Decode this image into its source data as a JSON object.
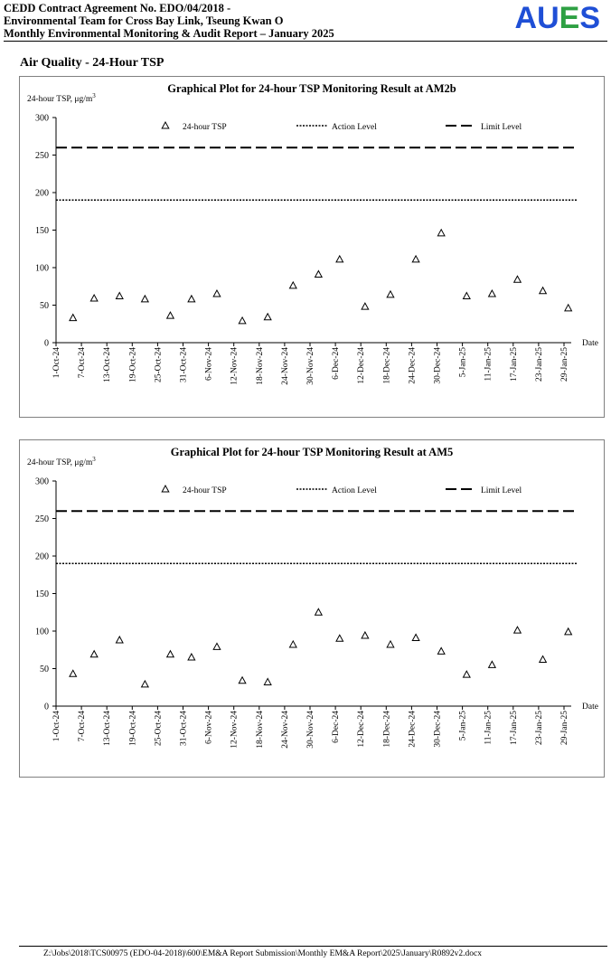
{
  "header": {
    "line1": "CEDD Contract Agreement No. EDO/04/2018 -",
    "line2": "Environmental Team for Cross Bay Link, Tseung Kwan O",
    "line3": "Monthly Environmental Monitoring & Audit Report – January 2025",
    "logo_text": "AUES",
    "logo_colors": [
      "#1f4fd6",
      "#1f4fd6",
      "#2ea043",
      "#1f4fd6"
    ]
  },
  "section_title": "Air Quality - 24-Hour TSP",
  "footer_path": "Z:\\Jobs\\2018\\TCS00975 (EDO-04-2018)\\600\\EM&A Report Submission\\Monthly EM&A Report\\2025\\January\\R0892v2.docx",
  "chart_data": [
    {
      "type": "scatter",
      "title": "Graphical Plot for 24-hour TSP Monitoring Result at AM2b",
      "ylabel": "24-hour TSP, μg/m",
      "ylabel_sup": "3",
      "xlabel": "Date",
      "ylim": [
        0,
        300
      ],
      "yticks": [
        0,
        50,
        100,
        150,
        200,
        250,
        300
      ],
      "xticks": [
        "1-Oct-24",
        "7-Oct-24",
        "13-Oct-24",
        "19-Oct-24",
        "25-Oct-24",
        "31-Oct-24",
        "6-Nov-24",
        "12-Nov-24",
        "18-Nov-24",
        "24-Nov-24",
        "30-Nov-24",
        "6-Dec-24",
        "12-Dec-24",
        "18-Dec-24",
        "24-Dec-24",
        "30-Dec-24",
        "5-Jan-25",
        "11-Jan-25",
        "17-Jan-25",
        "23-Jan-25",
        "29-Jan-25"
      ],
      "grid": false,
      "legend": [
        "24-hour TSP",
        "Action Level",
        "Limit Level"
      ],
      "legend_position": "top",
      "series": [
        {
          "name": "24-hour TSP",
          "marker": "triangle",
          "x": [
            "2024-10-05",
            "2024-10-10",
            "2024-10-16",
            "2024-10-22",
            "2024-10-28",
            "2024-11-02",
            "2024-11-08",
            "2024-11-14",
            "2024-11-20",
            "2024-11-26",
            "2024-12-02",
            "2024-12-07",
            "2024-12-13",
            "2024-12-19",
            "2024-12-25",
            "2024-12-31",
            "2025-01-06",
            "2025-01-12",
            "2025-01-18",
            "2025-01-24",
            "2025-01-30"
          ],
          "y": [
            33,
            59,
            62,
            58,
            36,
            58,
            65,
            29,
            34,
            76,
            91,
            111,
            48,
            64,
            111,
            146,
            62,
            65,
            84,
            69,
            46
          ]
        },
        {
          "name": "Action Level",
          "style": "dotted",
          "y_const": 190
        },
        {
          "name": "Limit Level",
          "style": "dashed",
          "y_const": 260
        }
      ]
    },
    {
      "type": "scatter",
      "title": "Graphical Plot for 24-hour TSP Monitoring Result at AM5",
      "ylabel": "24-hour TSP, μg/m",
      "ylabel_sup": "3",
      "xlabel": "Date",
      "ylim": [
        0,
        300
      ],
      "yticks": [
        0,
        50,
        100,
        150,
        200,
        250,
        300
      ],
      "xticks": [
        "1-Oct-24",
        "7-Oct-24",
        "13-Oct-24",
        "19-Oct-24",
        "25-Oct-24",
        "31-Oct-24",
        "6-Nov-24",
        "12-Nov-24",
        "18-Nov-24",
        "24-Nov-24",
        "30-Nov-24",
        "6-Dec-24",
        "12-Dec-24",
        "18-Dec-24",
        "24-Dec-24",
        "30-Dec-24",
        "5-Jan-25",
        "11-Jan-25",
        "17-Jan-25",
        "23-Jan-25",
        "29-Jan-25"
      ],
      "grid": false,
      "legend": [
        "24-hour TSP",
        "Action Level",
        "Limit Level"
      ],
      "legend_position": "top",
      "series": [
        {
          "name": "24-hour TSP",
          "marker": "triangle",
          "x": [
            "2024-10-05",
            "2024-10-10",
            "2024-10-16",
            "2024-10-22",
            "2024-10-28",
            "2024-11-02",
            "2024-11-08",
            "2024-11-14",
            "2024-11-20",
            "2024-11-26",
            "2024-12-02",
            "2024-12-07",
            "2024-12-13",
            "2024-12-19",
            "2024-12-25",
            "2024-12-31",
            "2025-01-06",
            "2025-01-12",
            "2025-01-18",
            "2025-01-24",
            "2025-01-30"
          ],
          "y": [
            43,
            69,
            88,
            29,
            69,
            65,
            79,
            34,
            32,
            82,
            125,
            90,
            94,
            82,
            91,
            73,
            42,
            55,
            101,
            62,
            99
          ]
        },
        {
          "name": "Action Level",
          "style": "dotted",
          "y_const": 190
        },
        {
          "name": "Limit Level",
          "style": "dashed",
          "y_const": 260
        }
      ]
    }
  ]
}
